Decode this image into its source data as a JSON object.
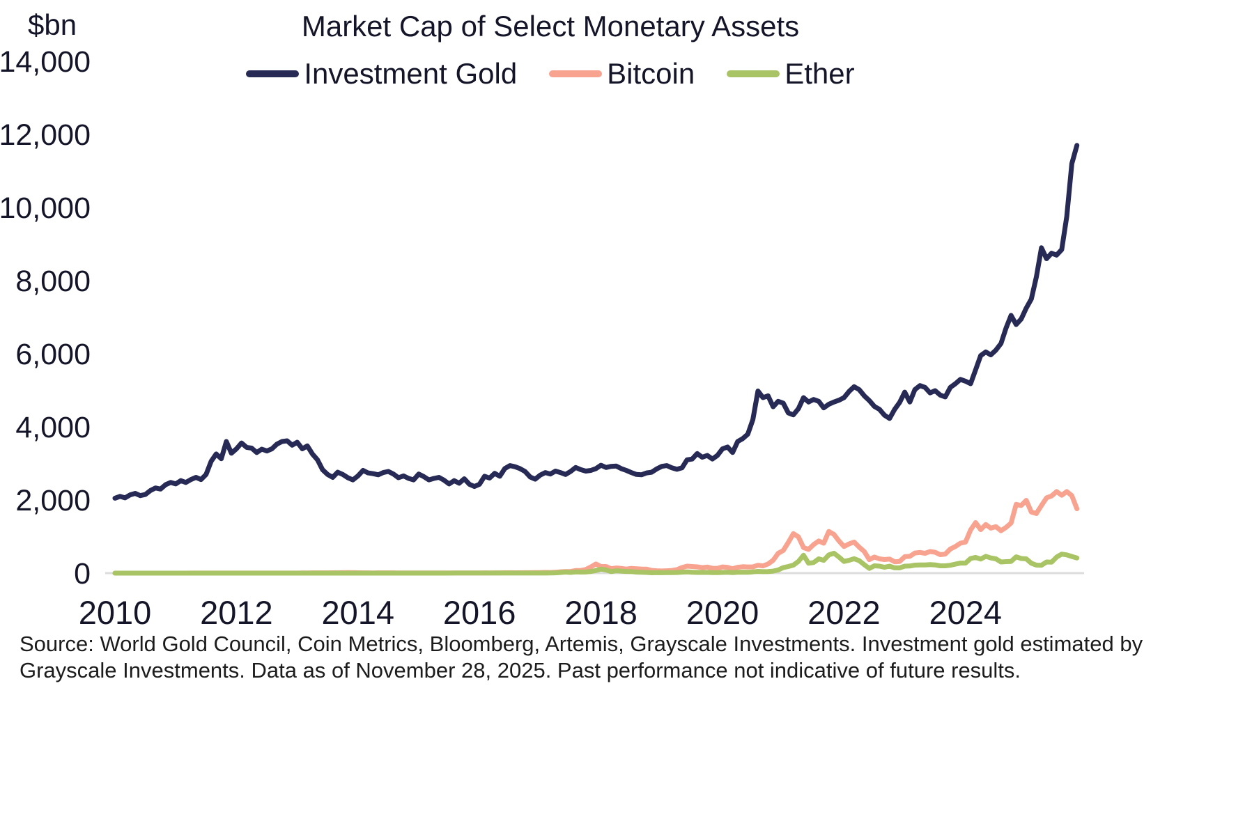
{
  "title": "Market Cap of Select Monetary Assets",
  "y_unit": "$bn",
  "legend": [
    {
      "label": "Investment Gold",
      "color": "#262a55"
    },
    {
      "label": "Bitcoin",
      "color": "#f8a38f"
    },
    {
      "label": "Ether",
      "color": "#a9c464"
    }
  ],
  "source": "Source: World Gold Council, Coin Metrics, Bloomberg, Artemis, Grayscale Investments. Investment gold estimated by Grayscale Investments. Data as of November 28, 2025. Past performance not indicative of future results.",
  "chart_data": {
    "type": "line",
    "title": "Market Cap of Select Monetary Assets",
    "ylabel": "$bn",
    "ylim": [
      0,
      14000
    ],
    "yticks": [
      0,
      2000,
      4000,
      6000,
      8000,
      10000,
      12000,
      14000
    ],
    "xticks": [
      2010,
      2012,
      2014,
      2016,
      2018,
      2020,
      2022,
      2024
    ],
    "x_start": 2010,
    "x_step": "monthly",
    "x_end_label": "November 2025",
    "legend_position": "top",
    "grid": false,
    "series": [
      {
        "name": "Investment Gold",
        "color": "#262a55",
        "values": [
          2050,
          2100,
          2060,
          2140,
          2180,
          2120,
          2150,
          2260,
          2330,
          2300,
          2420,
          2480,
          2440,
          2530,
          2480,
          2560,
          2620,
          2560,
          2700,
          3060,
          3260,
          3130,
          3600,
          3280,
          3400,
          3560,
          3440,
          3420,
          3300,
          3390,
          3340,
          3400,
          3530,
          3600,
          3620,
          3500,
          3580,
          3400,
          3480,
          3260,
          3100,
          2830,
          2700,
          2620,
          2760,
          2700,
          2610,
          2550,
          2660,
          2810,
          2740,
          2720,
          2690,
          2750,
          2780,
          2710,
          2610,
          2660,
          2590,
          2550,
          2710,
          2640,
          2550,
          2590,
          2620,
          2540,
          2440,
          2530,
          2460,
          2580,
          2430,
          2370,
          2430,
          2650,
          2600,
          2730,
          2650,
          2860,
          2940,
          2910,
          2860,
          2780,
          2630,
          2570,
          2680,
          2750,
          2710,
          2790,
          2750,
          2700,
          2780,
          2890,
          2830,
          2790,
          2810,
          2860,
          2950,
          2890,
          2920,
          2930,
          2860,
          2810,
          2750,
          2700,
          2690,
          2740,
          2760,
          2850,
          2920,
          2940,
          2880,
          2840,
          2880,
          3100,
          3120,
          3270,
          3170,
          3220,
          3120,
          3220,
          3400,
          3450,
          3300,
          3600,
          3680,
          3800,
          4200,
          4980,
          4800,
          4850,
          4550,
          4700,
          4650,
          4380,
          4330,
          4500,
          4800,
          4680,
          4750,
          4700,
          4520,
          4620,
          4680,
          4730,
          4800,
          4970,
          5100,
          5020,
          4850,
          4720,
          4560,
          4480,
          4320,
          4230,
          4480,
          4670,
          4950,
          4680,
          5020,
          5130,
          5080,
          4930,
          4990,
          4870,
          4820,
          5080,
          5180,
          5300,
          5250,
          5180,
          5560,
          5950,
          6050,
          5970,
          6100,
          6280,
          6700,
          7050,
          6800,
          6950,
          7250,
          7500,
          8100,
          8900,
          8600,
          8750,
          8700,
          8850,
          9750,
          11200,
          11700
        ]
      },
      {
        "name": "Bitcoin",
        "color": "#f8a38f",
        "values": [
          0,
          0,
          0,
          0,
          0,
          0,
          0,
          0,
          0,
          0,
          0,
          0,
          0,
          0,
          0,
          1,
          2,
          1,
          1,
          1,
          1,
          1,
          1,
          1,
          1,
          1,
          1,
          1,
          1,
          1,
          1,
          1,
          1,
          1,
          1,
          2,
          2,
          3,
          6,
          8,
          7,
          7,
          8,
          9,
          9,
          11,
          13,
          12,
          10,
          8,
          7,
          6,
          8,
          8,
          8,
          7,
          6,
          5,
          5,
          4,
          3,
          4,
          4,
          3,
          3,
          4,
          4,
          3,
          3,
          4,
          5,
          6,
          6,
          7,
          6,
          7,
          8,
          10,
          10,
          9,
          10,
          11,
          12,
          15,
          16,
          19,
          17,
          22,
          37,
          42,
          45,
          70,
          72,
          100,
          170,
          250,
          180,
          180,
          120,
          140,
          130,
          110,
          130,
          120,
          112,
          110,
          75,
          65,
          60,
          65,
          72,
          95,
          152,
          190,
          180,
          172,
          150,
          165,
          133,
          131,
          170,
          158,
          120,
          160,
          175,
          169,
          172,
          215,
          198,
          250,
          352,
          540,
          620,
          840,
          1080,
          990,
          700,
          650,
          780,
          880,
          820,
          1140,
          1060,
          880,
          730,
          800,
          850,
          710,
          590,
          370,
          440,
          390,
          372,
          385,
          310,
          320,
          450,
          460,
          550,
          565,
          540,
          590,
          570,
          505,
          520,
          660,
          730,
          820,
          850,
          1180,
          1380,
          1190,
          1330,
          1230,
          1270,
          1160,
          1250,
          1370,
          1880,
          1850,
          1990,
          1670,
          1630,
          1850,
          2060,
          2110,
          2230,
          2130,
          2230,
          2120,
          1760
        ]
      },
      {
        "name": "Ether",
        "color": "#a9c464",
        "values": [
          0,
          0,
          0,
          0,
          0,
          0,
          0,
          0,
          0,
          0,
          0,
          0,
          0,
          0,
          0,
          0,
          0,
          0,
          0,
          0,
          0,
          0,
          0,
          0,
          0,
          0,
          0,
          0,
          0,
          0,
          0,
          0,
          0,
          0,
          0,
          0,
          0,
          0,
          0,
          0,
          0,
          0,
          0,
          0,
          0,
          0,
          0,
          0,
          0,
          0,
          0,
          0,
          0,
          0,
          0,
          0,
          0,
          0,
          0,
          0,
          0,
          0,
          0,
          0,
          0,
          0,
          0,
          1,
          1,
          1,
          1,
          1,
          1,
          1,
          1,
          1,
          1,
          1,
          1,
          1,
          1,
          1,
          1,
          1,
          1,
          2,
          4,
          7,
          18,
          28,
          20,
          32,
          28,
          30,
          45,
          70,
          110,
          85,
          42,
          65,
          55,
          45,
          42,
          28,
          23,
          20,
          10,
          14,
          12,
          14,
          15,
          17,
          27,
          32,
          23,
          19,
          19,
          20,
          16,
          14,
          20,
          25,
          15,
          23,
          26,
          25,
          35,
          48,
          40,
          43,
          55,
          85,
          150,
          180,
          220,
          320,
          490,
          270,
          290,
          390,
          350,
          500,
          545,
          440,
          320,
          350,
          395,
          340,
          230,
          130,
          200,
          190,
          160,
          190,
          145,
          145,
          190,
          195,
          220,
          225,
          225,
          235,
          225,
          200,
          200,
          215,
          245,
          275,
          275,
          400,
          430,
          385,
          460,
          415,
          390,
          305,
          315,
          320,
          445,
          400,
          390,
          270,
          220,
          215,
          305,
          300,
          440,
          520,
          500,
          455,
          415
        ]
      }
    ]
  }
}
